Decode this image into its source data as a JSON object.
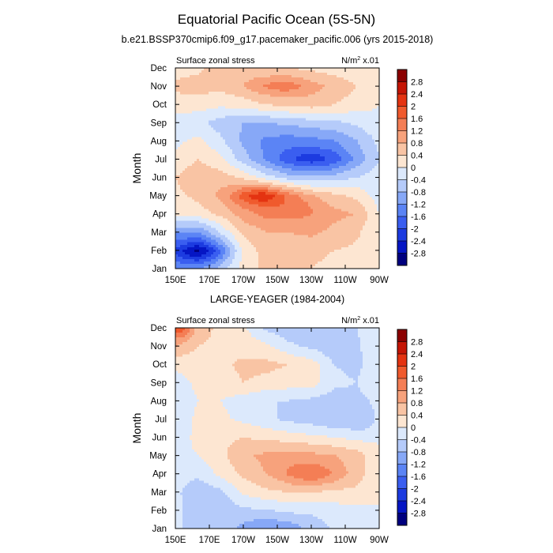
{
  "figure": {
    "title": "Equatorial Pacific Ocean (5S-5N)"
  },
  "colors": {
    "levels": [
      -2.8,
      -2.4,
      -2.0,
      -1.6,
      -1.2,
      -0.8,
      -0.4,
      0.0,
      0.4,
      0.8,
      1.2,
      1.6,
      2.0,
      2.4,
      2.8
    ],
    "fills": [
      "#00007f",
      "#0516c4",
      "#1c3be0",
      "#3a5ef0",
      "#5b84f5",
      "#87a8f7",
      "#b5cbfa",
      "#dce9fc",
      "#fde6d2",
      "#f9c4a4",
      "#f7a27c",
      "#f47e55",
      "#f05a2d",
      "#e43311",
      "#c51505",
      "#8b0000"
    ]
  },
  "chart_data": [
    {
      "type": "heatmap",
      "subtitle": "b.e21.BSSP370cmip6.f09_g17.pacemaker_pacific.006 (yrs 2015-2018)",
      "left_label": "Surface zonal stress",
      "units": "N/m",
      "units_sup": "2",
      "units_suffix": " x.01",
      "ylabel": "Month",
      "xlabel": "",
      "x_tick_labels": [
        "150E",
        "170E",
        "170W",
        "150W",
        "130W",
        "110W",
        "90W"
      ],
      "x_tick_lons": [
        150,
        170,
        190,
        210,
        230,
        250,
        270
      ],
      "xlim": [
        150,
        270
      ],
      "y_tick_labels": [
        "Jan",
        "Feb",
        "Mar",
        "Apr",
        "May",
        "Jun",
        "Jul",
        "Aug",
        "Sep",
        "Oct",
        "Nov",
        "Dec"
      ],
      "ylim": [
        1,
        12
      ],
      "colorbar_labels": [
        "2.8",
        "2.4",
        "2",
        "1.6",
        "1.2",
        "0.8",
        "0.4",
        "0",
        "-0.4",
        "-0.8",
        "-1.2",
        "-1.6",
        "-2",
        "-2.4",
        "-2.8"
      ],
      "base": [
        [
          -1.2,
          -1.1,
          -0.6,
          0.2,
          0.5,
          0.6,
          0.4,
          0.3,
          0.2,
          0.0
        ],
        [
          -1.9,
          -2.1,
          -1.2,
          0.1,
          0.6,
          0.6,
          0.5,
          0.4,
          0.3,
          0.0
        ],
        [
          -1.1,
          -1.2,
          -0.3,
          0.5,
          0.8,
          0.8,
          0.9,
          0.7,
          0.5,
          0.0
        ],
        [
          0.1,
          0.2,
          0.5,
          1.0,
          1.3,
          1.1,
          1.0,
          0.9,
          0.8,
          0.0
        ],
        [
          0.3,
          0.5,
          0.9,
          1.5,
          1.7,
          1.2,
          0.7,
          0.5,
          0.3,
          -0.2
        ],
        [
          0.4,
          0.7,
          0.6,
          0.3,
          -0.2,
          -0.6,
          -0.7,
          -0.6,
          -0.4,
          -0.2
        ],
        [
          0.1,
          0.4,
          0.1,
          -0.6,
          -1.2,
          -1.5,
          -1.6,
          -1.5,
          -1.0,
          -0.4
        ],
        [
          -0.1,
          0.1,
          -0.3,
          -0.9,
          -1.3,
          -1.4,
          -1.3,
          -1.2,
          -0.8,
          -0.3
        ],
        [
          -0.2,
          -0.3,
          -0.6,
          -0.8,
          -0.8,
          -0.7,
          -0.6,
          -0.5,
          -0.3,
          -0.1
        ],
        [
          0.2,
          0.2,
          0.1,
          0.2,
          0.4,
          0.5,
          0.6,
          0.4,
          0.2,
          0.0
        ],
        [
          0.5,
          0.6,
          0.5,
          0.7,
          0.9,
          1.1,
          0.9,
          0.7,
          0.4,
          0.1
        ],
        [
          0.2,
          0.3,
          0.6,
          0.6,
          0.5,
          0.4,
          0.3,
          0.2,
          0.1,
          0.0
        ]
      ],
      "features": [
        {
          "lon": 165,
          "month": 1.9,
          "sx": 10,
          "sy": 0.45,
          "amp": -0.8
        },
        {
          "lon": 200,
          "month": 5.0,
          "sx": 9,
          "sy": 0.35,
          "amp": 0.6
        },
        {
          "lon": 230,
          "month": 7.0,
          "sx": 14,
          "sy": 0.45,
          "amp": -0.6
        },
        {
          "lon": 210,
          "month": 11.0,
          "sx": 12,
          "sy": 0.35,
          "amp": 0.4
        },
        {
          "lon": 222,
          "month": 4.4,
          "sx": 10,
          "sy": 0.5,
          "amp": 0.4
        }
      ]
    },
    {
      "type": "heatmap",
      "subtitle": "LARGE-YEAGER (1984-2004)",
      "left_label": "Surface zonal stress",
      "units": "N/m",
      "units_sup": "2",
      "units_suffix": " x.01",
      "ylabel": "Month",
      "xlabel": "",
      "x_tick_labels": [
        "150E",
        "170E",
        "170W",
        "150W",
        "130W",
        "110W",
        "90W"
      ],
      "x_tick_lons": [
        150,
        170,
        190,
        210,
        230,
        250,
        270
      ],
      "xlim": [
        150,
        270
      ],
      "y_tick_labels": [
        "Jan",
        "Feb",
        "Mar",
        "Apr",
        "May",
        "Jun",
        "Jul",
        "Aug",
        "Sep",
        "Oct",
        "Nov",
        "Dec"
      ],
      "ylim": [
        1,
        12
      ],
      "colorbar_labels": [
        "2.8",
        "2.4",
        "2",
        "1.6",
        "1.2",
        "0.8",
        "0.4",
        "0",
        "-0.4",
        "-0.8",
        "-1.2",
        "-1.6",
        "-2",
        "-2.4",
        "-2.8"
      ],
      "base": [
        [
          -0.3,
          -0.6,
          -0.6,
          -0.7,
          -0.8,
          -0.6,
          -0.5,
          -0.3,
          -0.2,
          0.0
        ],
        [
          -0.3,
          -0.6,
          -0.7,
          -0.5,
          -0.4,
          -0.3,
          -0.3,
          -0.2,
          -0.1,
          0.0
        ],
        [
          -0.3,
          -0.7,
          -0.5,
          0.1,
          0.3,
          0.4,
          0.4,
          0.3,
          0.3,
          0.0
        ],
        [
          -0.2,
          -0.3,
          0.1,
          0.5,
          0.8,
          1.1,
          1.2,
          1.0,
          0.6,
          0.0
        ],
        [
          -0.1,
          0.0,
          0.3,
          0.7,
          0.9,
          1.0,
          0.9,
          0.8,
          0.6,
          0.0
        ],
        [
          -0.2,
          0.1,
          0.3,
          0.4,
          0.3,
          0.2,
          0.1,
          0.0,
          -0.1,
          0.0
        ],
        [
          -0.3,
          0.1,
          0.1,
          -0.1,
          -0.3,
          -0.5,
          -0.6,
          -0.8,
          -0.6,
          -0.1
        ],
        [
          -0.3,
          0.0,
          0.0,
          -0.2,
          -0.4,
          -0.4,
          -0.5,
          -0.6,
          -0.5,
          -0.2
        ],
        [
          -0.2,
          0.1,
          0.2,
          0.4,
          0.3,
          0.2,
          0.2,
          -0.3,
          -0.4,
          -0.1
        ],
        [
          0.1,
          0.2,
          0.3,
          0.5,
          0.5,
          0.4,
          0.2,
          -0.4,
          -0.5,
          -0.1
        ],
        [
          0.8,
          0.4,
          0.3,
          0.2,
          0.1,
          -0.3,
          -0.5,
          -0.7,
          -0.5,
          0.0
        ],
        [
          1.5,
          0.6,
          0.3,
          0.1,
          -0.5,
          -0.7,
          -0.8,
          -0.7,
          -0.4,
          0.0
        ]
      ],
      "features": [
        {
          "lon": 230,
          "month": 4.0,
          "sx": 10,
          "sy": 0.45,
          "amp": 0.4
        },
        {
          "lon": 154,
          "month": 11.9,
          "sx": 4,
          "sy": 0.35,
          "amp": 0.5
        },
        {
          "lon": 210,
          "month": 1.1,
          "sx": 16,
          "sy": 0.4,
          "amp": -0.4
        },
        {
          "lon": 262,
          "month": 7.0,
          "sx": 6,
          "sy": 0.6,
          "amp": -0.3
        }
      ]
    }
  ]
}
